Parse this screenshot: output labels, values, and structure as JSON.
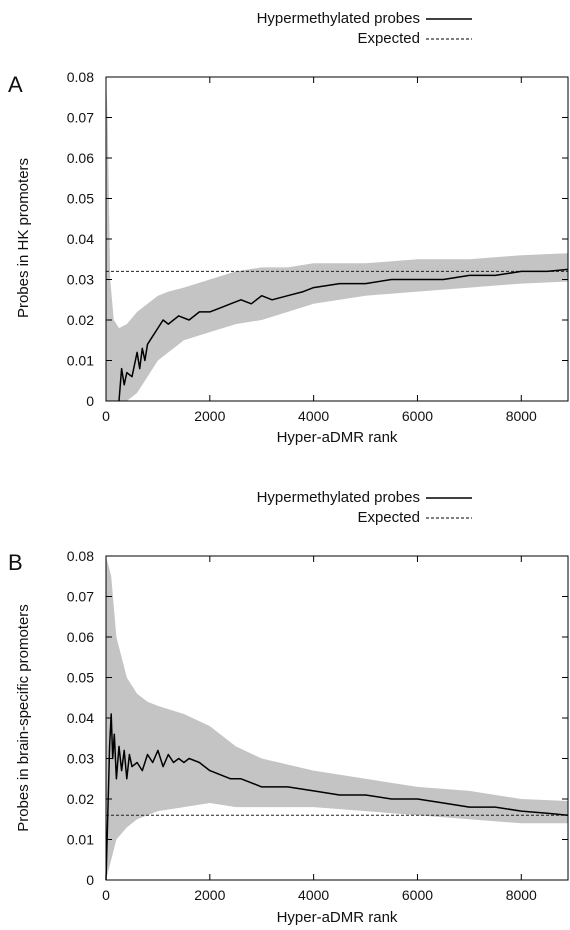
{
  "chart_data": [
    {
      "panel_label": "A",
      "type": "line",
      "xlabel": "Hyper-aDMR rank",
      "ylabel": "Probes in HK promoters",
      "xlim": [
        0,
        8900
      ],
      "ylim": [
        0,
        0.08
      ],
      "x_ticks": [
        "0",
        "2000",
        "4000",
        "6000",
        "8000"
      ],
      "y_ticks": [
        "0",
        "0.01",
        "0.02",
        "0.03",
        "0.04",
        "0.05",
        "0.06",
        "0.07",
        "0.08"
      ],
      "legend": {
        "position": "top-right, above plot",
        "entries": [
          "Hypermethylated probes",
          "Expected"
        ]
      },
      "expected": 0.032,
      "series": [
        {
          "name": "Hypermethylated probes",
          "style": "solid",
          "x": [
            250,
            300,
            350,
            400,
            500,
            600,
            650,
            700,
            750,
            800,
            900,
            1000,
            1100,
            1200,
            1400,
            1600,
            1800,
            2000,
            2200,
            2400,
            2600,
            2800,
            3000,
            3200,
            3500,
            3800,
            4000,
            4500,
            5000,
            5500,
            6000,
            6500,
            7000,
            7500,
            8000,
            8500,
            8900
          ],
          "y": [
            0.0,
            0.008,
            0.004,
            0.007,
            0.006,
            0.012,
            0.008,
            0.013,
            0.01,
            0.014,
            0.016,
            0.018,
            0.02,
            0.019,
            0.021,
            0.02,
            0.022,
            0.022,
            0.023,
            0.024,
            0.025,
            0.024,
            0.026,
            0.025,
            0.026,
            0.027,
            0.028,
            0.029,
            0.029,
            0.03,
            0.03,
            0.03,
            0.031,
            0.031,
            0.032,
            0.032,
            0.0325
          ]
        }
      ],
      "band": {
        "x": [
          0,
          30,
          80,
          150,
          250,
          400,
          600,
          800,
          1000,
          1200,
          1500,
          2000,
          2500,
          3000,
          3500,
          4000,
          4500,
          5000,
          6000,
          7000,
          8000,
          8900
        ],
        "lower": [
          0,
          0,
          0,
          0,
          0,
          0,
          0.002,
          0.006,
          0.01,
          0.012,
          0.015,
          0.017,
          0.019,
          0.02,
          0.022,
          0.024,
          0.025,
          0.026,
          0.027,
          0.028,
          0.029,
          0.0295
        ],
        "upper": [
          0.08,
          0.07,
          0.03,
          0.02,
          0.018,
          0.019,
          0.022,
          0.024,
          0.026,
          0.027,
          0.028,
          0.03,
          0.032,
          0.033,
          0.033,
          0.034,
          0.034,
          0.034,
          0.035,
          0.035,
          0.036,
          0.0365
        ]
      }
    },
    {
      "panel_label": "B",
      "type": "line",
      "xlabel": "Hyper-aDMR rank",
      "ylabel": "Probes in brain-specific promoters",
      "xlim": [
        0,
        8900
      ],
      "ylim": [
        0,
        0.08
      ],
      "x_ticks": [
        "0",
        "2000",
        "4000",
        "6000",
        "8000"
      ],
      "y_ticks": [
        "0",
        "0.01",
        "0.02",
        "0.03",
        "0.04",
        "0.05",
        "0.06",
        "0.07",
        "0.08"
      ],
      "legend": {
        "position": "top-right, above plot",
        "entries": [
          "Hypermethylated probes",
          "Expected"
        ]
      },
      "expected": 0.016,
      "series": [
        {
          "name": "Hypermethylated probes",
          "style": "solid",
          "x": [
            0,
            40,
            70,
            100,
            130,
            160,
            200,
            250,
            300,
            350,
            400,
            450,
            500,
            600,
            700,
            800,
            900,
            1000,
            1100,
            1200,
            1300,
            1400,
            1500,
            1600,
            1800,
            2000,
            2200,
            2400,
            2600,
            2800,
            3000,
            3500,
            4000,
            4500,
            5000,
            5500,
            6000,
            6500,
            7000,
            7500,
            8000,
            8500,
            8900
          ],
          "y": [
            0,
            0.019,
            0.033,
            0.041,
            0.03,
            0.036,
            0.025,
            0.033,
            0.027,
            0.032,
            0.025,
            0.031,
            0.028,
            0.029,
            0.027,
            0.031,
            0.029,
            0.032,
            0.028,
            0.031,
            0.029,
            0.03,
            0.029,
            0.03,
            0.029,
            0.027,
            0.026,
            0.025,
            0.025,
            0.024,
            0.023,
            0.023,
            0.022,
            0.021,
            0.021,
            0.02,
            0.02,
            0.019,
            0.018,
            0.018,
            0.017,
            0.0165,
            0.016
          ]
        }
      ],
      "band": {
        "x": [
          0,
          100,
          200,
          400,
          600,
          800,
          1000,
          1500,
          2000,
          2500,
          3000,
          4000,
          5000,
          6000,
          7000,
          8000,
          8900
        ],
        "lower": [
          0,
          0.005,
          0.01,
          0.013,
          0.015,
          0.016,
          0.017,
          0.018,
          0.019,
          0.018,
          0.018,
          0.018,
          0.017,
          0.016,
          0.015,
          0.014,
          0.014
        ],
        "upper": [
          0.08,
          0.075,
          0.06,
          0.05,
          0.046,
          0.044,
          0.043,
          0.041,
          0.038,
          0.033,
          0.03,
          0.027,
          0.025,
          0.023,
          0.022,
          0.02,
          0.0195
        ]
      }
    }
  ]
}
